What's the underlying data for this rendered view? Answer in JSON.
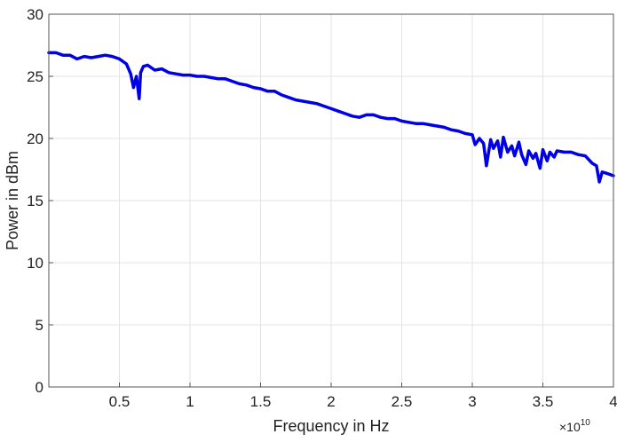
{
  "chart_data": {
    "type": "line",
    "title": "",
    "xlabel": "Frequency in Hz",
    "ylabel": "Power in dBm",
    "x_exponent_label": "×10",
    "x_exponent_power": "10",
    "xlim": [
      0,
      4
    ],
    "ylim": [
      0,
      30
    ],
    "x_scale_factor": "1e10",
    "xticks": [
      0.5,
      1,
      1.5,
      2,
      2.5,
      3,
      3.5,
      4
    ],
    "xtick_labels": [
      "0.5",
      "1",
      "1.5",
      "2",
      "2.5",
      "3",
      "3.5",
      "4"
    ],
    "yticks": [
      0,
      5,
      10,
      15,
      20,
      25,
      30
    ],
    "ytick_labels": [
      "0",
      "5",
      "10",
      "15",
      "20",
      "25",
      "30"
    ],
    "grid": true,
    "line_color": "#0000e6",
    "series": [
      {
        "x": [
          0,
          0.05,
          0.1,
          0.15,
          0.2,
          0.25,
          0.3,
          0.35,
          0.4,
          0.45,
          0.5,
          0.55,
          0.58,
          0.6,
          0.62,
          0.64,
          0.65,
          0.67,
          0.7,
          0.75,
          0.8,
          0.85,
          0.9,
          0.95,
          1.0,
          1.05,
          1.1,
          1.15,
          1.2,
          1.25,
          1.3,
          1.35,
          1.4,
          1.45,
          1.5,
          1.55,
          1.6,
          1.65,
          1.7,
          1.75,
          1.8,
          1.85,
          1.9,
          1.95,
          2.0,
          2.05,
          2.1,
          2.15,
          2.2,
          2.25,
          2.3,
          2.35,
          2.4,
          2.45,
          2.5,
          2.55,
          2.6,
          2.65,
          2.7,
          2.75,
          2.8,
          2.85,
          2.9,
          2.95,
          3.0,
          3.02,
          3.05,
          3.08,
          3.1,
          3.13,
          3.15,
          3.18,
          3.2,
          3.22,
          3.25,
          3.28,
          3.3,
          3.33,
          3.35,
          3.38,
          3.4,
          3.43,
          3.45,
          3.48,
          3.5,
          3.53,
          3.55,
          3.58,
          3.6,
          3.65,
          3.7,
          3.75,
          3.8,
          3.85,
          3.88,
          3.9,
          3.92,
          3.95,
          4.0
        ],
        "y": [
          26.9,
          26.9,
          26.7,
          26.7,
          26.4,
          26.6,
          26.5,
          26.6,
          26.7,
          26.6,
          26.4,
          26.0,
          25.2,
          24.1,
          25.0,
          23.2,
          25.3,
          25.8,
          25.9,
          25.5,
          25.6,
          25.3,
          25.2,
          25.1,
          25.1,
          25.0,
          25.0,
          24.9,
          24.8,
          24.8,
          24.6,
          24.4,
          24.3,
          24.1,
          24.0,
          23.8,
          23.8,
          23.5,
          23.3,
          23.1,
          23.0,
          22.9,
          22.8,
          22.6,
          22.4,
          22.2,
          22.0,
          21.8,
          21.7,
          21.9,
          21.9,
          21.7,
          21.6,
          21.6,
          21.4,
          21.3,
          21.2,
          21.2,
          21.1,
          21.0,
          20.9,
          20.7,
          20.6,
          20.4,
          20.3,
          19.5,
          20.0,
          19.6,
          17.8,
          19.9,
          19.2,
          19.8,
          18.5,
          20.1,
          18.9,
          19.4,
          18.6,
          19.7,
          18.7,
          17.9,
          19.0,
          18.4,
          18.8,
          17.6,
          19.1,
          18.2,
          18.9,
          18.5,
          19.0,
          18.9,
          18.9,
          18.7,
          18.6,
          18.0,
          17.8,
          16.5,
          17.3,
          17.2,
          17.0
        ]
      }
    ]
  }
}
